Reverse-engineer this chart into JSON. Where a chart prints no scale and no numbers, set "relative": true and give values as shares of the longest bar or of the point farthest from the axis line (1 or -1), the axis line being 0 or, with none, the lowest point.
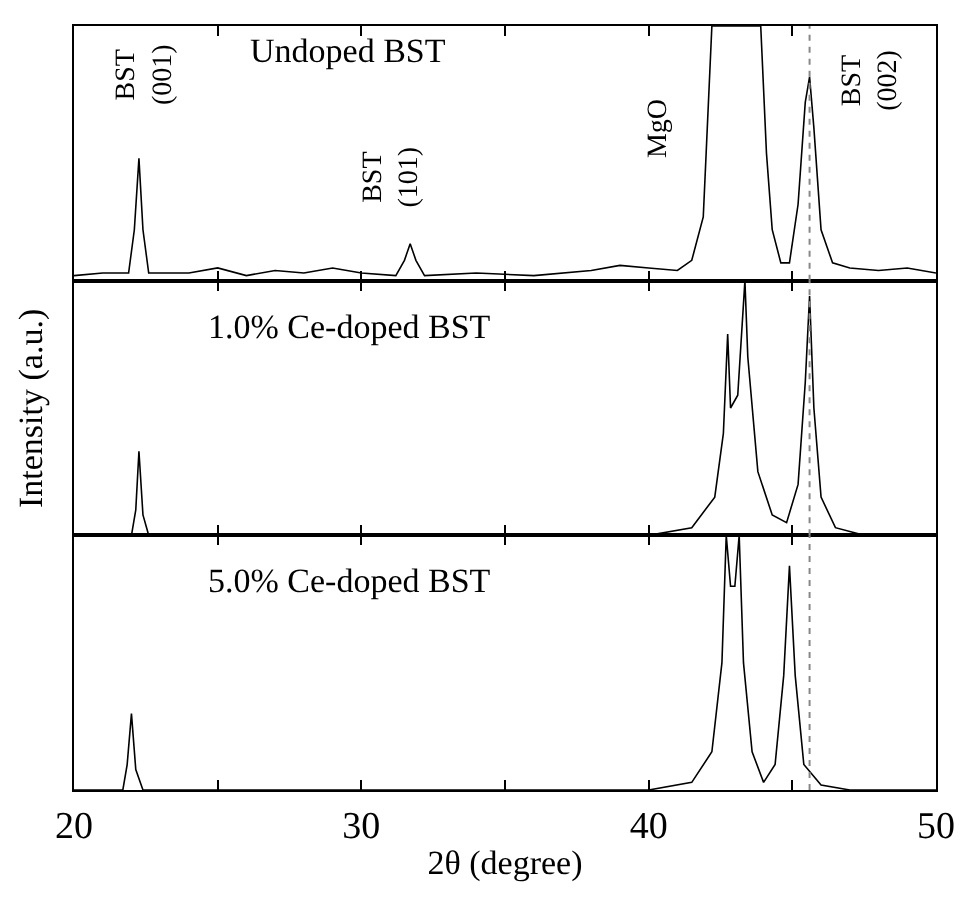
{
  "chart_data": [
    {
      "type": "line",
      "relative": true,
      "tick_labels": false,
      "marker": "none",
      "line_style": "solid",
      "xlim": [
        20,
        50
      ],
      "xticks": [
        20,
        {
          "value": 25,
          "label": null
        },
        30,
        {
          "value": 35,
          "label": null
        },
        40,
        {
          "value": 45,
          "label": null
        },
        50
      ],
      "x": [
        20,
        21,
        21.9,
        22.1,
        22.26,
        22.4,
        22.6,
        24,
        25,
        26,
        27,
        28,
        29,
        30,
        31.2,
        31.5,
        31.7,
        31.9,
        32.2,
        34,
        36,
        38,
        39,
        40,
        41,
        41.5,
        41.9,
        42.0,
        42.2,
        43.9,
        44.1,
        44.3,
        44.6,
        44.9,
        45.2,
        45.45,
        45.6,
        45.75,
        46.0,
        46.4,
        47,
        48,
        49,
        50
      ],
      "series": [
        {
          "color": "#000000",
          "values": [
            0.02,
            0.03,
            0.03,
            0.2,
            0.48,
            0.2,
            0.03,
            0.03,
            0.05,
            0.02,
            0.04,
            0.03,
            0.05,
            0.03,
            0.02,
            0.08,
            0.145,
            0.08,
            0.02,
            0.03,
            0.02,
            0.04,
            0.06,
            0.05,
            0.04,
            0.08,
            0.25,
            0.5,
            1,
            1,
            0.5,
            0.2,
            0.07,
            0.07,
            0.3,
            0.7,
            0.8,
            0.6,
            0.2,
            0.07,
            0.05,
            0.04,
            0.05,
            0.03
          ]
        }
      ],
      "ref_lines": [
        {
          "axis": "x",
          "value": 45.6,
          "color": "#888888",
          "line_style": "dotted"
        }
      ],
      "annotations": [
        "Undoped BST",
        "BST\n(001)",
        "BST\n(101)",
        "MgO",
        "BST\n(002)"
      ]
    },
    {
      "type": "line",
      "relative": true,
      "tick_labels": false,
      "marker": "none",
      "line_style": "solid",
      "ylabel": "Intensity (a.u.)",
      "xlim": [
        20,
        50
      ],
      "xticks": [
        20,
        {
          "value": 25,
          "label": null
        },
        30,
        {
          "value": 35,
          "label": null
        },
        40,
        {
          "value": 45,
          "label": null
        },
        50
      ],
      "x": [
        20,
        22.0,
        22.15,
        22.26,
        22.4,
        22.6,
        40,
        41.5,
        42.3,
        42.6,
        42.75,
        42.85,
        43.1,
        43.35,
        43.45,
        43.8,
        44.3,
        44.8,
        45.2,
        45.45,
        45.6,
        45.75,
        46.0,
        46.5,
        47.5,
        50
      ],
      "series": [
        {
          "color": "#000000",
          "values": [
            0,
            0,
            0.1,
            0.33,
            0.08,
            0,
            0,
            0.03,
            0.15,
            0.4,
            0.79,
            0.5,
            0.55,
            1,
            0.7,
            0.25,
            0.08,
            0.05,
            0.2,
            0.6,
            0.94,
            0.5,
            0.15,
            0.03,
            0,
            0
          ]
        }
      ],
      "ref_lines": [
        {
          "axis": "x",
          "value": 45.6,
          "color": "#888888",
          "line_style": "dotted"
        }
      ],
      "annotations": [
        "1.0% Ce-doped BST"
      ]
    },
    {
      "type": "line",
      "relative": true,
      "tick_labels": "x",
      "marker": "none",
      "line_style": "solid",
      "xlabel": "2θ (degree)",
      "xlim": [
        20,
        50
      ],
      "xticks": [
        20,
        {
          "value": 25,
          "label": null
        },
        30,
        {
          "value": 35,
          "label": null
        },
        40,
        {
          "value": 45,
          "label": null
        },
        50
      ],
      "x": [
        20,
        21.7,
        21.85,
        22.0,
        22.15,
        22.4,
        40,
        41.5,
        42.2,
        42.55,
        42.7,
        42.85,
        43.0,
        43.15,
        43.3,
        43.6,
        44.0,
        44.4,
        44.7,
        44.9,
        45.1,
        45.4,
        46,
        47,
        50
      ],
      "series": [
        {
          "color": "#000000",
          "values": [
            0,
            0,
            0.1,
            0.3,
            0.08,
            0,
            0,
            0.03,
            0.15,
            0.5,
            1,
            0.8,
            0.8,
            1,
            0.5,
            0.15,
            0.03,
            0.1,
            0.45,
            0.88,
            0.45,
            0.1,
            0.02,
            0,
            0
          ]
        }
      ],
      "ref_lines": [
        {
          "axis": "x",
          "value": 45.6,
          "color": "#888888",
          "line_style": "dotted"
        }
      ],
      "annotations": [
        "5.0% Ce-doped BST"
      ]
    }
  ]
}
